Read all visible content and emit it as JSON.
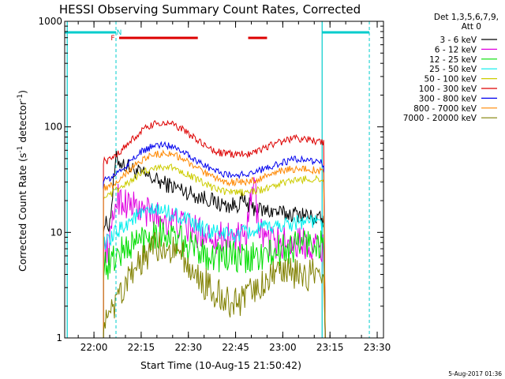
{
  "chart_data": {
    "type": "line",
    "title": "HESSI Observing Summary Count Rates, Corrected",
    "xlabel": "Start Time (10-Aug-15 21:50:42)",
    "ylabel": "Corrected Count Rate (s⁻¹ detector⁻¹)",
    "ylabel_main": "Corrected Count Rate (s",
    "ylabel_sup1": "-1",
    "ylabel_mid": " detector",
    "ylabel_sup2": "-1",
    "ylabel_end": ")",
    "y_scale": "log",
    "ylim": [
      1,
      1000
    ],
    "xlim": [
      "21:50:42",
      "23:32:00"
    ],
    "x_ticks": [
      "22:00",
      "22:15",
      "22:30",
      "22:45",
      "23:00",
      "23:15",
      "23:30"
    ],
    "y_ticks": [
      "1",
      "10",
      "100",
      "1000"
    ],
    "legend_header": [
      "Det 1,3,5,6,7,9,",
      "Att 0"
    ],
    "legend_position": "right",
    "footer": "5-Aug-2017 01:36",
    "data_window": [
      "22:03:00",
      "23:13:30"
    ],
    "series": [
      {
        "name": "3 - 6 keV",
        "color": "#000000",
        "x": [
          "22:03",
          "22:05",
          "22:07",
          "22:09",
          "22:12",
          "22:15",
          "22:18",
          "22:21",
          "22:24",
          "22:27",
          "22:30",
          "22:33",
          "22:36",
          "22:39",
          "22:42",
          "22:45",
          "22:47",
          "22:49",
          "22:51",
          "22:54",
          "22:57",
          "23:00",
          "23:03",
          "23:06",
          "23:09",
          "23:13"
        ],
        "y": [
          12,
          12,
          50,
          45,
          40,
          36,
          33,
          30,
          28,
          26,
          24,
          22,
          21,
          19,
          18,
          18,
          20,
          18,
          17,
          16,
          16,
          15,
          15,
          15,
          14,
          13
        ]
      },
      {
        "name": "6 - 12 keV",
        "color": "#e000e0",
        "x": [
          "22:03",
          "22:05",
          "22:07",
          "22:09",
          "22:12",
          "22:15",
          "22:18",
          "22:21",
          "22:24",
          "22:27",
          "22:30",
          "22:33",
          "22:36",
          "22:39",
          "22:42",
          "22:45",
          "22:48",
          "22:50",
          "22:51",
          "22:52",
          "22:54",
          "22:57",
          "23:00",
          "23:03",
          "23:06",
          "23:09",
          "23:13"
        ],
        "y": [
          7,
          7,
          22,
          20,
          18,
          16,
          15,
          14,
          13,
          12,
          11,
          10,
          10,
          9,
          9,
          9,
          8,
          20,
          30,
          14,
          9,
          8,
          8,
          8,
          8,
          8,
          7
        ]
      },
      {
        "name": "12 - 25 keV",
        "color": "#00dd00",
        "x": [
          "22:03",
          "22:05",
          "22:07",
          "22:10",
          "22:13",
          "22:16",
          "22:19",
          "22:22",
          "22:25",
          "22:28",
          "22:31",
          "22:34",
          "22:37",
          "22:40",
          "22:43",
          "22:46",
          "22:49",
          "22:52",
          "22:55",
          "22:58",
          "23:01",
          "23:04",
          "23:07",
          "23:10",
          "23:13"
        ],
        "y": [
          5,
          5,
          6,
          7,
          8,
          9,
          10,
          10,
          9,
          8,
          7,
          7,
          6,
          6,
          6,
          5.5,
          5.5,
          6,
          6,
          6.5,
          7,
          7.5,
          8,
          8,
          7.5
        ]
      },
      {
        "name": "25 - 50 keV",
        "color": "#00eeee",
        "x": [
          "22:03",
          "22:05",
          "22:07",
          "22:10",
          "22:13",
          "22:16",
          "22:19",
          "22:22",
          "22:25",
          "22:28",
          "22:31",
          "22:34",
          "22:37",
          "22:40",
          "22:43",
          "22:46",
          "22:49",
          "22:52",
          "22:55",
          "22:58",
          "23:01",
          "23:04",
          "23:07",
          "23:10",
          "23:13"
        ],
        "y": [
          8,
          8,
          10,
          12,
          14,
          15,
          16,
          16,
          15,
          14,
          12,
          11,
          10,
          10,
          9.5,
          9.5,
          10,
          10.5,
          11,
          11.5,
          12,
          12.5,
          13,
          12.5,
          12
        ]
      },
      {
        "name": "50 - 100 keV",
        "color": "#cccc00",
        "x": [
          "22:03",
          "22:05",
          "22:07",
          "22:10",
          "22:13",
          "22:16",
          "22:19",
          "22:22",
          "22:25",
          "22:28",
          "22:31",
          "22:34",
          "22:37",
          "22:40",
          "22:43",
          "22:46",
          "22:49",
          "22:52",
          "22:55",
          "22:58",
          "23:01",
          "23:04",
          "23:07",
          "23:10",
          "23:13"
        ],
        "y": [
          22,
          22,
          25,
          28,
          33,
          38,
          41,
          42,
          41,
          38,
          34,
          30,
          27,
          25,
          24,
          24,
          24,
          25,
          26,
          28,
          30,
          31,
          32,
          32,
          31
        ]
      },
      {
        "name": "100 - 300 keV",
        "color": "#dd0000",
        "x": [
          "22:03",
          "22:05",
          "22:07",
          "22:10",
          "22:13",
          "22:16",
          "22:19",
          "22:22",
          "22:25",
          "22:28",
          "22:31",
          "22:34",
          "22:37",
          "22:40",
          "22:43",
          "22:46",
          "22:49",
          "22:52",
          "22:55",
          "22:58",
          "23:01",
          "23:04",
          "23:07",
          "23:10",
          "23:13"
        ],
        "y": [
          48,
          48,
          55,
          65,
          80,
          95,
          105,
          110,
          105,
          95,
          82,
          70,
          62,
          57,
          55,
          55,
          56,
          60,
          65,
          70,
          75,
          78,
          77,
          74,
          70
        ]
      },
      {
        "name": "300 - 800 keV",
        "color": "#0000ee",
        "x": [
          "22:03",
          "22:05",
          "22:07",
          "22:10",
          "22:13",
          "22:16",
          "22:19",
          "22:22",
          "22:25",
          "22:28",
          "22:31",
          "22:34",
          "22:37",
          "22:40",
          "22:43",
          "22:46",
          "22:49",
          "22:52",
          "22:55",
          "22:58",
          "23:01",
          "23:04",
          "23:07",
          "23:10",
          "23:13"
        ],
        "y": [
          32,
          32,
          36,
          42,
          52,
          60,
          66,
          68,
          66,
          60,
          52,
          45,
          40,
          37,
          35,
          35,
          36,
          38,
          41,
          44,
          47,
          49,
          49,
          47,
          45
        ]
      },
      {
        "name": "800 - 7000 keV",
        "color": "#ff8800",
        "x": [
          "22:03",
          "22:05",
          "22:07",
          "22:10",
          "22:13",
          "22:16",
          "22:19",
          "22:22",
          "22:25",
          "22:28",
          "22:31",
          "22:34",
          "22:37",
          "22:40",
          "22:43",
          "22:46",
          "22:49",
          "22:52",
          "22:55",
          "22:58",
          "23:01",
          "23:04",
          "23:07",
          "23:10",
          "23:13"
        ],
        "y": [
          27,
          27,
          30,
          36,
          44,
          50,
          55,
          56,
          55,
          50,
          44,
          38,
          34,
          31,
          30,
          30,
          30,
          32,
          34,
          37,
          39,
          40,
          40,
          39,
          37
        ]
      },
      {
        "name": "7000 - 20000 keV",
        "color": "#808000",
        "x": [
          "22:03",
          "22:05",
          "22:07",
          "22:10",
          "22:13",
          "22:16",
          "22:19",
          "22:22",
          "22:25",
          "22:28",
          "22:31",
          "22:34",
          "22:37",
          "22:40",
          "22:43",
          "22:46",
          "22:49",
          "22:52",
          "22:55",
          "22:58",
          "23:01",
          "23:04",
          "23:07",
          "23:10",
          "23:13"
        ],
        "y": [
          1.5,
          1.5,
          2,
          3,
          4.5,
          6,
          7,
          7.5,
          7,
          6,
          4.5,
          3.5,
          3,
          2.5,
          2.2,
          2.2,
          2.5,
          3,
          3.5,
          3.8,
          4,
          4,
          4,
          4,
          3.5
        ]
      }
    ],
    "annotations": {
      "flag_letters": [
        {
          "text": "F",
          "color": "#dd0000",
          "x": "22:06"
        },
        {
          "text": "N",
          "color": "#00cccc",
          "x": "22:08"
        }
      ],
      "night_bars": [
        {
          "start": "21:50:42",
          "end": "22:07:00"
        },
        {
          "start": "23:12:30",
          "end": "23:27:30"
        }
      ],
      "flare_bars": [
        {
          "start": "22:08:00",
          "end": "22:33:00"
        },
        {
          "start": "22:49:00",
          "end": "22:55:00"
        }
      ],
      "night_boundaries_solid": [
        "21:51:30",
        "23:12:30"
      ],
      "night_boundaries_dashed": [
        "22:07:00",
        "23:27:30"
      ],
      "night_color": "#00cccc",
      "flare_color": "#dd0000"
    }
  }
}
